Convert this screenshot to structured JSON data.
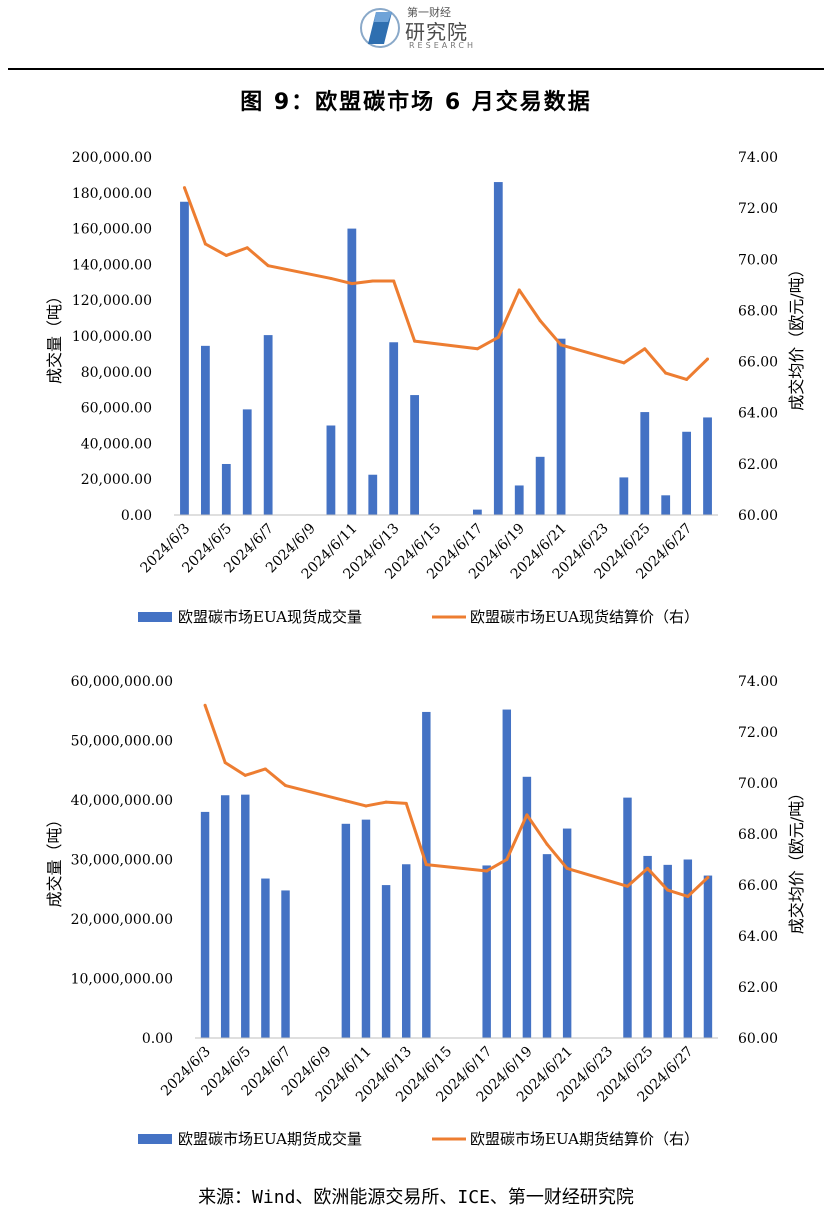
{
  "header": {
    "logo_top": "第一财经",
    "logo_main": "研究院",
    "logo_sub": "RESEARCH"
  },
  "figure_title": "图 9：欧盟碳市场 6 月交易数据",
  "source": "来源：Wind、欧洲能源交易所、ICE、第一财经研究院",
  "colors": {
    "bar": "#4472C4",
    "line": "#ED7D31"
  },
  "chart_data": [
    {
      "type": "bar+line",
      "x": [
        "2024/6/3",
        "2024/6/4",
        "2024/6/5",
        "2024/6/6",
        "2024/6/7",
        "2024/6/8",
        "2024/6/9",
        "2024/6/10",
        "2024/6/11",
        "2024/6/12",
        "2024/6/13",
        "2024/6/14",
        "2024/6/15",
        "2024/6/16",
        "2024/6/17",
        "2024/6/18",
        "2024/6/19",
        "2024/6/20",
        "2024/6/21",
        "2024/6/22",
        "2024/6/23",
        "2024/6/24",
        "2024/6/25",
        "2024/6/26",
        "2024/6/27",
        "2024/6/28"
      ],
      "x_tick_labels": [
        "2024/6/3",
        "2024/6/5",
        "2024/6/7",
        "2024/6/9",
        "2024/6/11",
        "2024/6/13",
        "2024/6/15",
        "2024/6/17",
        "2024/6/19",
        "2024/6/21",
        "2024/6/23",
        "2024/6/25",
        "2024/6/27"
      ],
      "ylabel_left": "成交量（吨）",
      "ylabel_right": "成交均价（欧元/吨）",
      "ylim_left": [
        0,
        200000
      ],
      "yticks_left": [
        "0.00",
        "20,000.00",
        "40,000.00",
        "60,000.00",
        "80,000.00",
        "100,000.00",
        "120,000.00",
        "140,000.00",
        "160,000.00",
        "180,000.00",
        "200,000.00"
      ],
      "ylim_right": [
        60,
        74
      ],
      "yticks_right": [
        "60.00",
        "62.00",
        "64.00",
        "66.00",
        "68.00",
        "70.00",
        "72.00",
        "74.00"
      ],
      "legend_position": "bottom",
      "series": [
        {
          "name": "欧盟碳市场EUA现货成交量",
          "kind": "bar",
          "axis": "left",
          "values": [
            175000,
            94500,
            28500,
            59000,
            100500,
            null,
            null,
            50000,
            160000,
            22500,
            96500,
            67000,
            null,
            null,
            3000,
            186000,
            16500,
            32500,
            98500,
            null,
            null,
            21000,
            57500,
            11000,
            46500,
            54500
          ]
        },
        {
          "name": "欧盟碳市场EUA现货结算价（右）",
          "kind": "line",
          "axis": "right",
          "values": [
            72.8,
            70.6,
            70.15,
            70.45,
            69.75,
            null,
            null,
            69.25,
            69.05,
            69.15,
            69.15,
            66.8,
            null,
            null,
            66.5,
            66.95,
            68.8,
            67.6,
            66.65,
            null,
            null,
            65.95,
            66.5,
            65.55,
            65.3,
            66.1
          ]
        }
      ]
    },
    {
      "type": "bar+line",
      "x": [
        "2024/6/3",
        "2024/6/4",
        "2024/6/5",
        "2024/6/6",
        "2024/6/7",
        "2024/6/8",
        "2024/6/9",
        "2024/6/10",
        "2024/6/11",
        "2024/6/12",
        "2024/6/13",
        "2024/6/14",
        "2024/6/15",
        "2024/6/16",
        "2024/6/17",
        "2024/6/18",
        "2024/6/19",
        "2024/6/20",
        "2024/6/21",
        "2024/6/22",
        "2024/6/23",
        "2024/6/24",
        "2024/6/25",
        "2024/6/26",
        "2024/6/27",
        "2024/6/28"
      ],
      "x_tick_labels": [
        "2024/6/3",
        "2024/6/5",
        "2024/6/7",
        "2024/6/9",
        "2024/6/11",
        "2024/6/13",
        "2024/6/15",
        "2024/6/17",
        "2024/6/19",
        "2024/6/21",
        "2024/6/23",
        "2024/6/25",
        "2024/6/27"
      ],
      "ylabel_left": "成交量（吨）",
      "ylabel_right": "成交均价（欧元/吨）",
      "ylim_left": [
        0,
        60000000
      ],
      "yticks_left": [
        "0.00",
        "10,000,000.00",
        "20,000,000.00",
        "30,000,000.00",
        "40,000,000.00",
        "50,000,000.00",
        "60,000,000.00"
      ],
      "ylim_right": [
        60,
        74
      ],
      "yticks_right": [
        "60.00",
        "62.00",
        "64.00",
        "66.00",
        "68.00",
        "70.00",
        "72.00",
        "74.00"
      ],
      "legend_position": "bottom",
      "series": [
        {
          "name": "欧盟碳市场EUA期货成交量",
          "kind": "bar",
          "axis": "left",
          "values": [
            38000000,
            40800000,
            40900000,
            26800000,
            24800000,
            null,
            null,
            36000000,
            36700000,
            25700000,
            29200000,
            54800000,
            null,
            null,
            29000000,
            55200000,
            43900000,
            30900000,
            35200000,
            null,
            null,
            40400000,
            30600000,
            29100000,
            30000000,
            27300000
          ]
        },
        {
          "name": "欧盟碳市场EUA期货结算价（右）",
          "kind": "line",
          "axis": "right",
          "values": [
            73.05,
            70.8,
            70.3,
            70.55,
            69.9,
            null,
            null,
            69.3,
            69.1,
            69.25,
            69.2,
            66.8,
            null,
            null,
            66.55,
            67.0,
            68.75,
            67.6,
            66.65,
            null,
            null,
            65.95,
            66.65,
            65.8,
            65.55,
            66.3
          ]
        }
      ]
    }
  ]
}
